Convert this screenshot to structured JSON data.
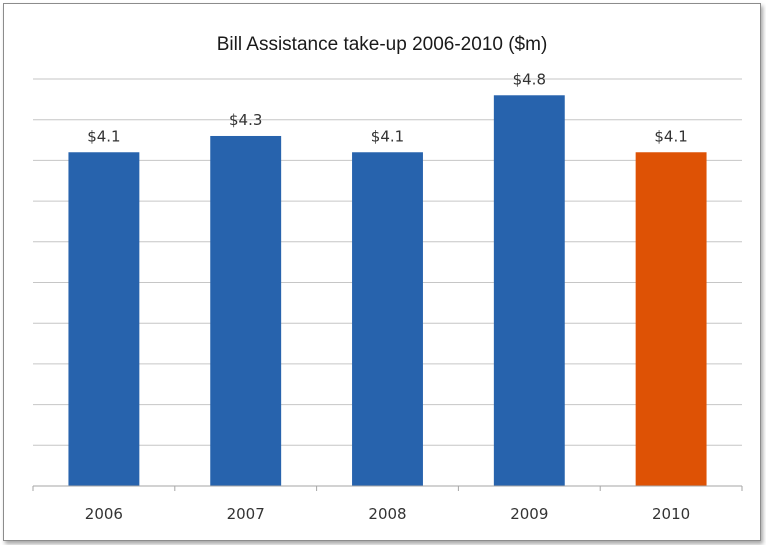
{
  "chart_data": {
    "type": "bar",
    "title": "Bill Assistance take-up 2006-2010 ($m)",
    "categories": [
      "2006",
      "2007",
      "2008",
      "2009",
      "2010"
    ],
    "values": [
      4.1,
      4.3,
      4.1,
      4.8,
      4.1
    ],
    "data_labels": [
      "$4.1",
      "$4.3",
      "$4.1",
      "$4.8",
      "$4.1"
    ],
    "bar_colors": [
      "#2763ad",
      "#2763ad",
      "#2763ad",
      "#2763ad",
      "#de5205"
    ],
    "ylim": [
      0,
      5
    ],
    "y_major_step": 0.5,
    "y_tick_labels_visible": false,
    "grid": true,
    "gridline_color": "#c6c6c6",
    "axis_color": "#a6a6a6"
  }
}
